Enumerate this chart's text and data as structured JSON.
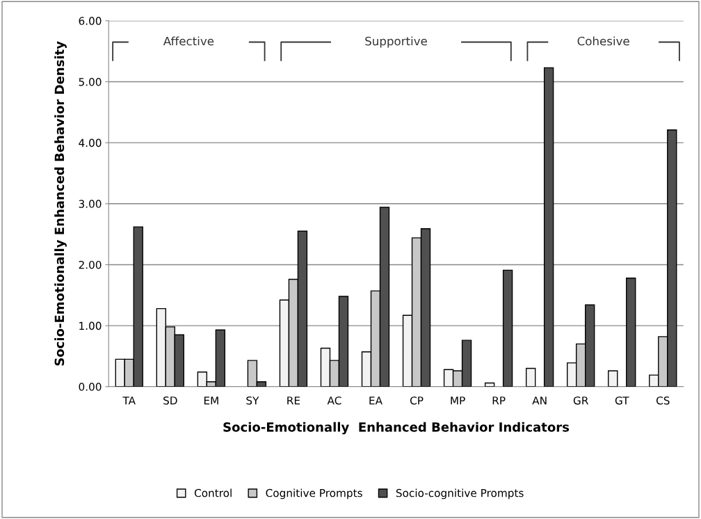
{
  "chart_data": {
    "type": "bar",
    "xlabel": "Socio-Emotionally  Enhanced Behavior Indicators",
    "ylabel": "Socio-Emotionally Enhanced Behavior Density",
    "categories": [
      "TA",
      "SD",
      "EM",
      "SY",
      "RE",
      "AC",
      "EA",
      "CP",
      "MP",
      "RP",
      "AN",
      "GR",
      "GT",
      "CS"
    ],
    "series": [
      {
        "name": "Control",
        "color": "#f2f2f2",
        "values": [
          0.45,
          1.28,
          0.24,
          null,
          1.42,
          0.63,
          0.57,
          1.17,
          0.28,
          0.06,
          0.3,
          0.39,
          0.26,
          0.19
        ]
      },
      {
        "name": "Cognitive Prompts",
        "color": "#c8c8c8",
        "values": [
          0.45,
          0.98,
          0.08,
          0.43,
          1.76,
          0.43,
          1.57,
          2.44,
          0.26,
          null,
          null,
          0.7,
          null,
          0.82
        ]
      },
      {
        "name": "Socio-cognitive Prompts",
        "color": "#505050",
        "values": [
          2.62,
          0.85,
          0.93,
          0.08,
          2.55,
          1.48,
          2.94,
          2.59,
          0.76,
          1.91,
          5.23,
          1.34,
          1.78,
          4.21
        ]
      }
    ],
    "annotations": [
      "Affective",
      "Supportive",
      "Cohesive"
    ],
    "ylim": [
      0,
      6
    ],
    "yticks": [
      {
        "value": 0,
        "label": "0.00"
      },
      {
        "value": 1,
        "label": "1.00"
      },
      {
        "value": 2,
        "label": "2.00"
      },
      {
        "value": 3,
        "label": "3.00"
      },
      {
        "value": 4,
        "label": "4.00"
      },
      {
        "value": 5,
        "label": "5.00"
      },
      {
        "value": 6,
        "label": "6.00"
      }
    ],
    "grid": "y",
    "legend": "bottom"
  }
}
